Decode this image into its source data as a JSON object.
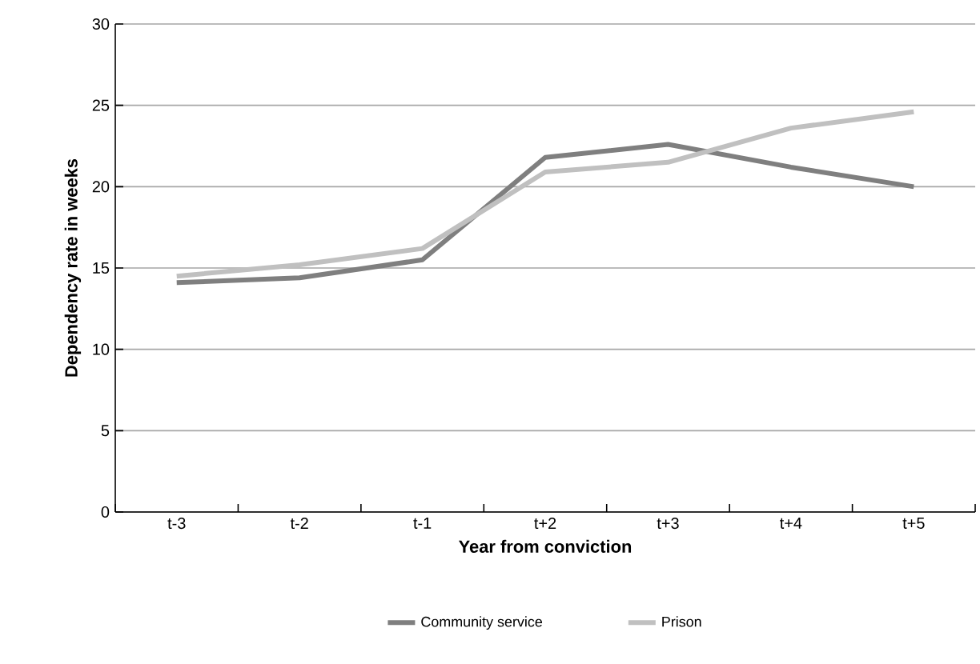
{
  "chart_data": {
    "type": "line",
    "xlabel": "Year from conviction",
    "ylabel": "Dependency rate in weeks",
    "categories": [
      "t-3",
      "t-2",
      "t-1",
      "t+2",
      "t+3",
      "t+4",
      "t+5"
    ],
    "series": [
      {
        "name": "Community service",
        "color": "#7f7f7f",
        "values": [
          14.1,
          14.4,
          15.5,
          21.8,
          22.6,
          21.2,
          20.0
        ]
      },
      {
        "name": "Prison",
        "color": "#c0c0c0",
        "values": [
          14.5,
          15.2,
          16.2,
          20.9,
          21.5,
          23.6,
          24.6
        ]
      }
    ],
    "ylim": [
      0,
      30
    ],
    "yticks": [
      0,
      5,
      10,
      15,
      20,
      25,
      30
    ],
    "grid": "y",
    "legend": "bottom",
    "marker": "none",
    "line_style": "solid"
  }
}
